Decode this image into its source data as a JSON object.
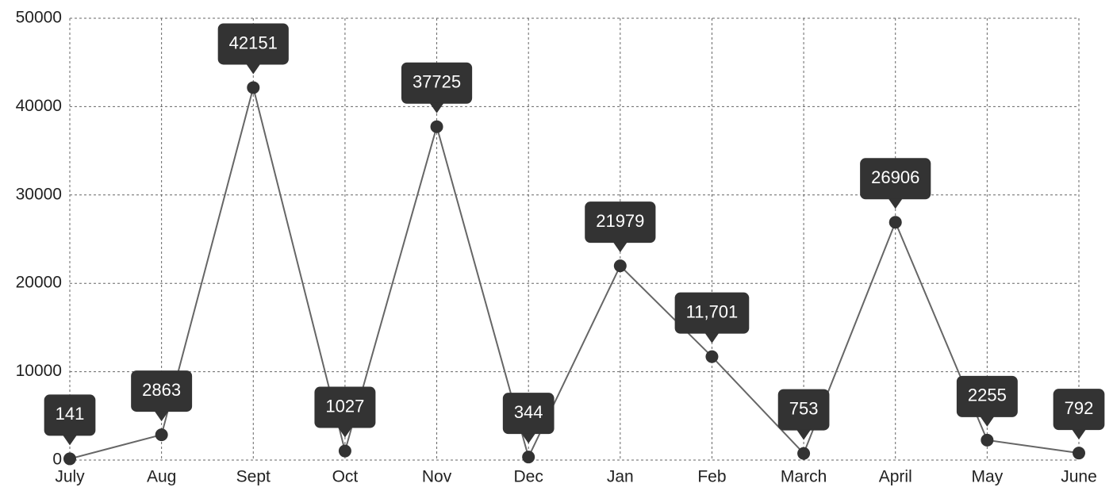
{
  "chart_data": {
    "type": "line",
    "categories": [
      "July",
      "Aug",
      "Sept",
      "Oct",
      "Nov",
      "Dec",
      "Jan",
      "Feb",
      "March",
      "April",
      "May",
      "June"
    ],
    "series": [
      {
        "color": "#666666",
        "values": [
          141,
          2863,
          42151,
          1027,
          37725,
          344,
          21979,
          11701,
          753,
          26906,
          2255,
          792
        ],
        "value_labels": [
          "141",
          "2863",
          "42151",
          "1027",
          "37725",
          "344",
          "21979",
          "11,701",
          "753",
          "26906",
          "2255",
          "792"
        ]
      }
    ],
    "ylim": [
      0,
      50000
    ],
    "yticks": [
      0,
      10000,
      20000,
      30000,
      40000,
      50000
    ],
    "grid": true
  }
}
